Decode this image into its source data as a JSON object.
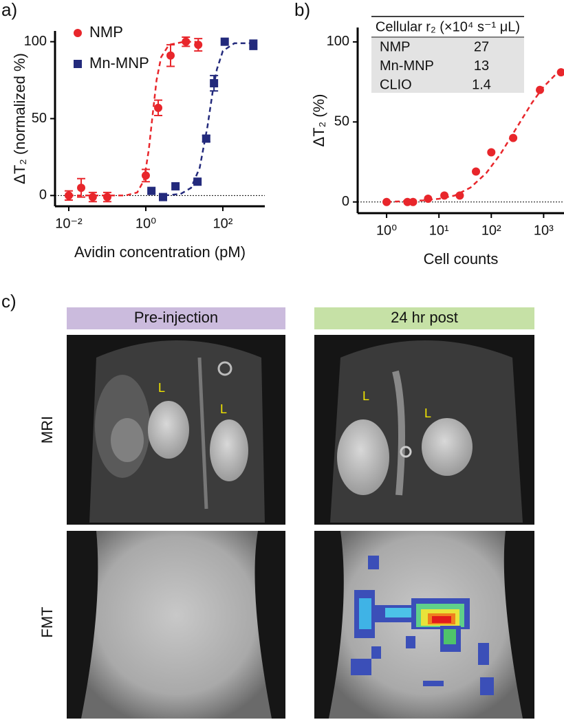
{
  "panel_labels": [
    "a)",
    "b)",
    "c)"
  ],
  "chart_data": [
    {
      "type": "scatter",
      "xscale": "log",
      "xlabel": "Avidin concentration (pM)",
      "ylabel": "ΔT₂ (normalized %)",
      "xlim": [
        0.0044,
        1230
      ],
      "ylim": [
        -7,
        107
      ],
      "xticks": [
        {
          "value": 0.01,
          "label": "10⁻²"
        },
        {
          "value": 1,
          "label": "10⁰"
        },
        {
          "value": 100,
          "label": "10²"
        }
      ],
      "yticks": [
        0,
        50,
        100
      ],
      "hline": 0,
      "legend": "upper left",
      "series": [
        {
          "name": "NMP",
          "color": "#e8262b",
          "marker": "circle",
          "x": [
            0.01,
            0.021,
            0.042,
            0.1,
            1.0,
            2.1,
            4.4,
            11,
            23
          ],
          "values": [
            0,
            5,
            -1,
            -1,
            13,
            57,
            91,
            100,
            98
          ],
          "errors": [
            3,
            6,
            3,
            3,
            4,
            5,
            7,
            3,
            4
          ],
          "fit_x": [
            0.01,
            0.3,
            0.6,
            0.9,
            1.2,
            1.5,
            1.9,
            2.5,
            4,
            10,
            20
          ],
          "fit_y": [
            0,
            0,
            2,
            10,
            30,
            52,
            75,
            90,
            98,
            100,
            100
          ]
        },
        {
          "name": "Mn-MNP",
          "color": "#232a7c",
          "marker": "square",
          "x": [
            1.4,
            2.8,
            5.9,
            22,
            37,
            59,
            112,
            620
          ],
          "values": [
            3,
            -1,
            6,
            9,
            37,
            73,
            100,
            98
          ],
          "errors": [
            0,
            0,
            0,
            0,
            2,
            5,
            0,
            3
          ],
          "fit_x": [
            3,
            8,
            15,
            25,
            40,
            55,
            70,
            100,
            200,
            500
          ],
          "fit_y": [
            0,
            1,
            5,
            18,
            45,
            68,
            82,
            94,
            99,
            99
          ]
        }
      ]
    },
    {
      "type": "scatter",
      "xscale": "log",
      "xlabel": "Cell counts",
      "ylabel": "ΔT₂ (%)",
      "xlim": [
        0.28,
        2450
      ],
      "ylim": [
        -7,
        109
      ],
      "xticks": [
        {
          "value": 1,
          "label": "10⁰"
        },
        {
          "value": 10,
          "label": "10¹"
        },
        {
          "value": 100,
          "label": "10²"
        },
        {
          "value": 1000,
          "label": "10³"
        }
      ],
      "yticks": [
        0,
        50,
        100
      ],
      "hline": 0,
      "series": [
        {
          "color": "#e8262b",
          "marker": "circle",
          "x": [
            1,
            2.5,
            3.2,
            6.2,
            12.7,
            25,
            51,
            100,
            262,
            850,
            2150
          ],
          "values": [
            0,
            0,
            0,
            2,
            4,
            4,
            19,
            31,
            40,
            70,
            81
          ],
          "fit_x": [
            1,
            5,
            10,
            20,
            40,
            80,
            150,
            300,
            600,
            1000,
            2000
          ],
          "fit_y": [
            0,
            1,
            2,
            4,
            9,
            18,
            30,
            46,
            62,
            72,
            82
          ]
        }
      ],
      "table": {
        "header": "Cellular r₂ (×10⁴ s⁻¹ μL)",
        "rows": [
          [
            "NMP",
            27
          ],
          [
            "Mn-MNP",
            13
          ],
          [
            "CLIO",
            1.4
          ]
        ]
      }
    }
  ],
  "figure": {
    "columns": [
      "Pre-injection",
      "24 hr post"
    ],
    "rows": [
      "MRI",
      "FMT"
    ],
    "markers": [
      "L",
      "L",
      "L",
      "L"
    ]
  }
}
